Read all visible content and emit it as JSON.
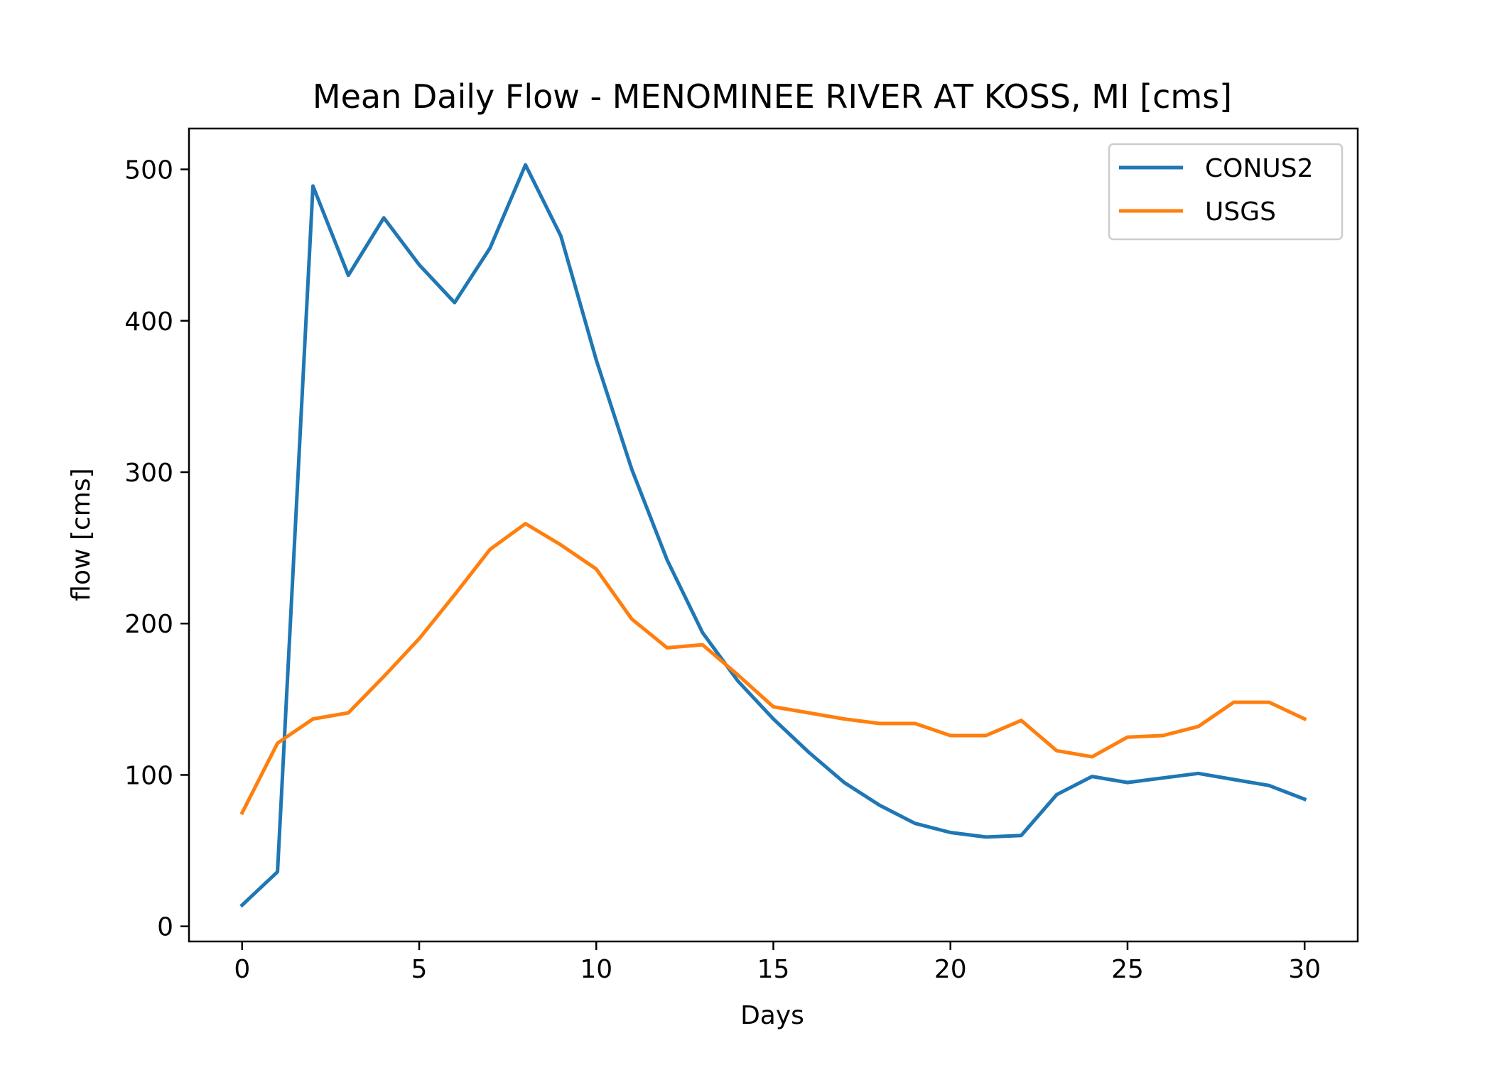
{
  "chart_data": {
    "type": "line",
    "title": "Mean Daily Flow - MENOMINEE RIVER AT KOSS, MI [cms]",
    "xlabel": "Days",
    "ylabel": "flow [cms]",
    "xlim": [
      -1.5,
      31.5
    ],
    "ylim": [
      -10,
      527
    ],
    "xticks": [
      0,
      5,
      10,
      15,
      20,
      25,
      30
    ],
    "yticks": [
      0,
      100,
      200,
      300,
      400,
      500
    ],
    "grid": false,
    "legend_position": "top-right",
    "x": [
      0,
      1,
      2,
      3,
      4,
      5,
      6,
      7,
      8,
      9,
      10,
      11,
      12,
      13,
      14,
      15,
      16,
      17,
      18,
      19,
      20,
      21,
      22,
      23,
      24,
      25,
      26,
      27,
      28,
      29,
      30
    ],
    "series": [
      {
        "name": "CONUS2",
        "color": "#1f77b4",
        "values": [
          14,
          36,
          489,
          430,
          468,
          437,
          412,
          448,
          503,
          456,
          374,
          302,
          242,
          194,
          162,
          137,
          115,
          95,
          80,
          68,
          62,
          59,
          60,
          87,
          99,
          95,
          98,
          101,
          97,
          93,
          84
        ]
      },
      {
        "name": "USGS",
        "color": "#ff7f0e",
        "values": [
          75,
          121,
          137,
          141,
          165,
          190,
          219,
          249,
          266,
          252,
          236,
          203,
          184,
          186,
          166,
          145,
          141,
          137,
          134,
          134,
          126,
          126,
          136,
          116,
          112,
          125,
          126,
          132,
          148,
          148,
          137
        ]
      }
    ]
  }
}
